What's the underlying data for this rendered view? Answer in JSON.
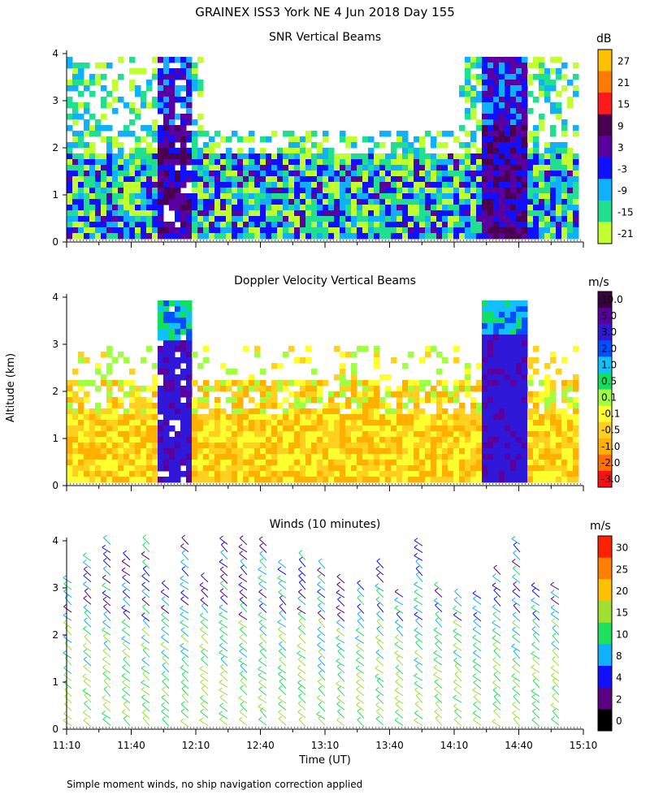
{
  "figure": {
    "title": "GRAINEX ISS3 York NE   4 Jun 2018 Day 155",
    "ylabel": "Altitude (km)",
    "xlabel": "Time (UT)",
    "footnote": "Simple moment winds, no ship navigation correction applied"
  },
  "chart_data": [
    {
      "type": "heatmap",
      "title": "SNR Vertical Beams",
      "x": [
        "11:10",
        "11:40",
        "12:10",
        "12:40",
        "13:10",
        "13:40",
        "14:10",
        "14:40",
        "15:10"
      ],
      "ylim": [
        0,
        4
      ],
      "yticks": [
        0,
        1,
        2,
        3,
        4
      ],
      "colorbar": {
        "unit": "dB",
        "labels": [
          "27",
          "21",
          "15",
          "9",
          "3",
          "-3",
          "-9",
          "-15",
          "-21"
        ],
        "colors": [
          "#ffc000",
          "#ff7a00",
          "#ff1a1a",
          "#4a0050",
          "#5a00a0",
          "#1010ff",
          "#10b0ff",
          "#20e090",
          "#c0ff30"
        ]
      },
      "regions": [
        {
          "name": "continuous low-level echo",
          "start": "11:10",
          "end": "15:10",
          "top_km": 2.0
        },
        {
          "name": "intense column 1",
          "start": "11:55",
          "end": "12:05",
          "top_km": 4.0
        },
        {
          "name": "intense column 2",
          "start": "14:20",
          "end": "14:40",
          "top_km": 4.0
        }
      ]
    },
    {
      "type": "heatmap",
      "title": "Doppler Velocity Vertical Beams",
      "x": [
        "11:10",
        "11:40",
        "12:10",
        "12:40",
        "13:10",
        "13:40",
        "14:10",
        "14:40",
        "15:10"
      ],
      "ylim": [
        0,
        4
      ],
      "yticks": [
        0,
        1,
        2,
        3,
        4
      ],
      "colorbar": {
        "unit": "m/s",
        "labels": [
          "10.0",
          "5.0",
          "3.0",
          "2.0",
          "1.0",
          "0.5",
          "0.1",
          "-0.1",
          "-0.5",
          "-1.0",
          "-2.0",
          "-3.0"
        ],
        "colors": [
          "#3a0040",
          "#5a00a0",
          "#3018d8",
          "#0050ff",
          "#10c0ff",
          "#10e060",
          "#a0ff40",
          "#ffff30",
          "#ffd020",
          "#ffb000",
          "#ff7000",
          "#ff1010"
        ]
      }
    },
    {
      "type": "scatter",
      "title": "Winds (10 minutes)",
      "x": [
        "11:10",
        "11:40",
        "12:10",
        "12:40",
        "13:10",
        "13:40",
        "14:10",
        "14:40",
        "15:10"
      ],
      "ylim": [
        0,
        4
      ],
      "yticks": [
        0,
        1,
        2,
        3,
        4
      ],
      "colorbar": {
        "unit": "m/s",
        "labels": [
          "30",
          "25",
          "20",
          "15",
          "10",
          "8",
          "4",
          "2",
          "0"
        ],
        "colors": [
          "#ff2000",
          "#ff8000",
          "#ffc000",
          "#a0e030",
          "#20e060",
          "#10b0ff",
          "#1010ff",
          "#5a0080",
          "#000000"
        ]
      }
    }
  ]
}
